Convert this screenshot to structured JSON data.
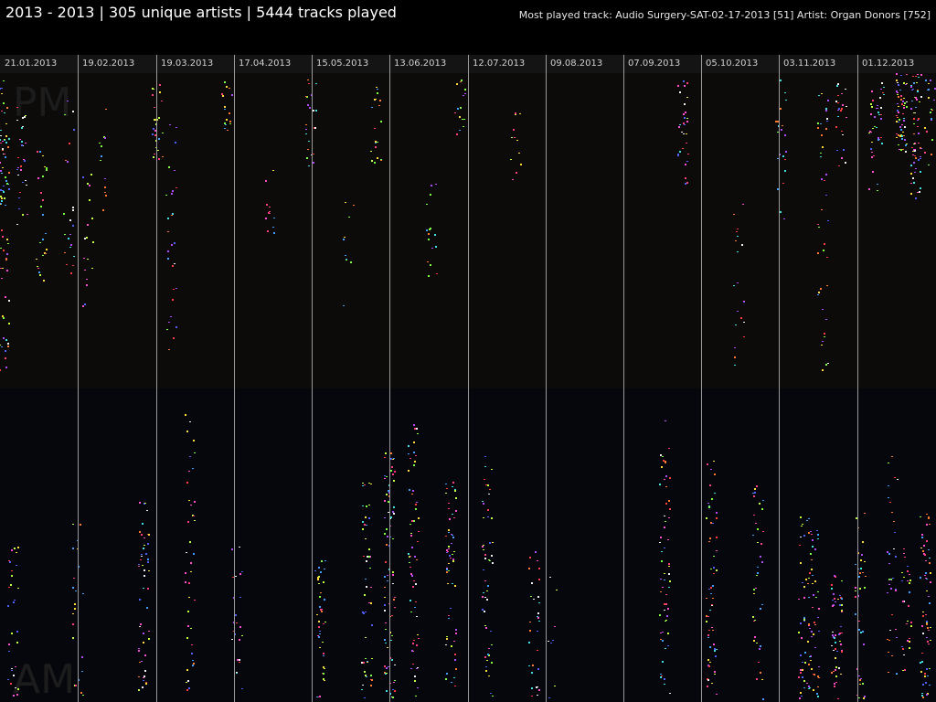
{
  "header": {
    "title": "2013 - 2013 | 305 unique artists | 5444 tracks played",
    "most_played_track": "Most played track: Audio Surgery-SAT-02-17-2013 [51]",
    "top_artist": "Artist: Organ Donors [752]"
  },
  "chart_data": {
    "type": "scatter",
    "title": "2013 - 2013 | 305 unique artists | 5444 tracks played",
    "x_range": [
      "2013-01-01",
      "2013-12-31"
    ],
    "tick_labels": [
      "21.01.2013",
      "19.02.2013",
      "19.03.2013",
      "17.04.2013",
      "15.05.2013",
      "13.06.2013",
      "12.07.2013",
      "09.08.2013",
      "07.09.2013",
      "05.10.2013",
      "03.11.2013",
      "01.12.2013"
    ],
    "half_labels": [
      "PM",
      "AM"
    ],
    "y_layout": "time of day, PM half on top, AM half below",
    "colors": {
      "background": "#000000",
      "pm_band": "#0d0b0a",
      "am_band": "#06070c",
      "gridline": "#9a9a9a",
      "tick_label_bg": "#141414"
    },
    "dot_palette": [
      "#ff3f7f",
      "#ffd83a",
      "#3fa0ff",
      "#7cff3f",
      "#ff7a2f",
      "#b24cff",
      "#3fe0e0",
      "#ff3f3f",
      "#f0f0f0",
      "#5060ff",
      "#ff4fd0",
      "#c0ff3f"
    ],
    "clusters": [
      {
        "date": "2013-01-01",
        "x_frac": 0.0,
        "half": "pm",
        "t0": 0.02,
        "t1": 0.95,
        "n": 80
      },
      {
        "date": "2013-01-03",
        "x_frac": 0.02,
        "half": "pm",
        "t0": 0.1,
        "t1": 0.5,
        "n": 30
      },
      {
        "date": "2013-01-05",
        "x_frac": 0.04,
        "half": "pm",
        "t0": 0.2,
        "t1": 0.7,
        "n": 26
      },
      {
        "date": "2013-01-10",
        "x_frac": 0.07,
        "half": "pm",
        "t0": 0.05,
        "t1": 0.65,
        "n": 22
      },
      {
        "date": "2013-01-16",
        "x_frac": 0.09,
        "half": "pm",
        "t0": 0.3,
        "t1": 0.75,
        "n": 18
      },
      {
        "date": "2013-01-25",
        "x_frac": 0.105,
        "half": "pm",
        "t0": 0.1,
        "t1": 0.45,
        "n": 12
      },
      {
        "date": "2013-01-01",
        "x_frac": 0.01,
        "half": "am",
        "t0": 0.5,
        "t1": 1.0,
        "n": 30
      },
      {
        "date": "2013-01-20",
        "x_frac": 0.08,
        "half": "am",
        "t0": 0.4,
        "t1": 1.0,
        "n": 22
      },
      {
        "date": "2013-02-10",
        "x_frac": 0.15,
        "half": "am",
        "t0": 0.35,
        "t1": 1.0,
        "n": 50
      },
      {
        "date": "2013-02-12",
        "x_frac": 0.165,
        "half": "pm",
        "t0": 0.02,
        "t1": 0.3,
        "n": 25
      },
      {
        "date": "2013-02-17",
        "x_frac": 0.18,
        "half": "pm",
        "t0": 0.15,
        "t1": 0.9,
        "n": 28
      },
      {
        "date": "2013-02-24",
        "x_frac": 0.2,
        "half": "am",
        "t0": 0.05,
        "t1": 1.0,
        "n": 40
      },
      {
        "date": "2013-03-10",
        "x_frac": 0.24,
        "half": "pm",
        "t0": 0.02,
        "t1": 0.2,
        "n": 18
      },
      {
        "date": "2013-03-15",
        "x_frac": 0.25,
        "half": "am",
        "t0": 0.5,
        "t1": 1.0,
        "n": 24
      },
      {
        "date": "2013-03-25",
        "x_frac": 0.285,
        "half": "pm",
        "t0": 0.3,
        "t1": 0.55,
        "n": 12
      },
      {
        "date": "2013-04-05",
        "x_frac": 0.33,
        "half": "pm",
        "t0": 0.02,
        "t1": 0.3,
        "n": 22
      },
      {
        "date": "2013-04-10",
        "x_frac": 0.34,
        "half": "am",
        "t0": 0.55,
        "t1": 1.0,
        "n": 40
      },
      {
        "date": "2013-04-20",
        "x_frac": 0.37,
        "half": "pm",
        "t0": 0.4,
        "t1": 0.75,
        "n": 10
      },
      {
        "date": "2013-04-26",
        "x_frac": 0.39,
        "half": "am",
        "t0": 0.3,
        "t1": 1.0,
        "n": 50
      },
      {
        "date": "2013-05-10",
        "x_frac": 0.4,
        "half": "pm",
        "t0": 0.02,
        "t1": 0.3,
        "n": 20
      },
      {
        "date": "2013-05-16",
        "x_frac": 0.415,
        "half": "am",
        "t0": 0.2,
        "t1": 1.0,
        "n": 80
      },
      {
        "date": "2013-05-20",
        "x_frac": 0.44,
        "half": "am",
        "t0": 0.1,
        "t1": 1.0,
        "n": 60
      },
      {
        "date": "2013-05-28",
        "x_frac": 0.46,
        "half": "pm",
        "t0": 0.3,
        "t1": 0.65,
        "n": 16
      },
      {
        "date": "2013-06-05",
        "x_frac": 0.48,
        "half": "am",
        "t0": 0.3,
        "t1": 1.0,
        "n": 60
      },
      {
        "date": "2013-06-08",
        "x_frac": 0.49,
        "half": "pm",
        "t0": 0.02,
        "t1": 0.2,
        "n": 15
      },
      {
        "date": "2013-06-12",
        "x_frac": 0.52,
        "half": "am",
        "t0": 0.2,
        "t1": 1.0,
        "n": 50
      },
      {
        "date": "2013-06-20",
        "x_frac": 0.55,
        "half": "pm",
        "t0": 0.1,
        "t1": 0.35,
        "n": 12
      },
      {
        "date": "2013-06-25",
        "x_frac": 0.57,
        "half": "am",
        "t0": 0.5,
        "t1": 1.0,
        "n": 30
      },
      {
        "date": "2013-07-10",
        "x_frac": 0.59,
        "half": "am",
        "t0": 0.6,
        "t1": 1.0,
        "n": 8
      },
      {
        "date": "2013-08-08",
        "x_frac": 0.71,
        "half": "am",
        "t0": 0.1,
        "t1": 1.0,
        "n": 60
      },
      {
        "date": "2013-08-12",
        "x_frac": 0.73,
        "half": "pm",
        "t0": 0.02,
        "t1": 0.35,
        "n": 30
      },
      {
        "date": "2013-08-20",
        "x_frac": 0.76,
        "half": "am",
        "t0": 0.2,
        "t1": 1.0,
        "n": 60
      },
      {
        "date": "2013-09-05",
        "x_frac": 0.79,
        "half": "pm",
        "t0": 0.4,
        "t1": 0.95,
        "n": 20
      },
      {
        "date": "2013-09-10",
        "x_frac": 0.81,
        "half": "am",
        "t0": 0.3,
        "t1": 1.0,
        "n": 40
      },
      {
        "date": "2013-09-18",
        "x_frac": 0.835,
        "half": "pm",
        "t0": 0.02,
        "t1": 0.5,
        "n": 22
      },
      {
        "date": "2013-09-25",
        "x_frac": 0.86,
        "half": "am",
        "t0": 0.4,
        "t1": 1.0,
        "n": 40
      },
      {
        "date": "2013-10-05",
        "x_frac": 0.88,
        "half": "pm",
        "t0": 0.05,
        "t1": 0.95,
        "n": 40
      },
      {
        "date": "2013-10-12",
        "x_frac": 0.9,
        "half": "pm",
        "t0": 0.02,
        "t1": 0.3,
        "n": 25
      },
      {
        "date": "2013-10-20",
        "x_frac": 0.92,
        "half": "am",
        "t0": 0.4,
        "t1": 1.0,
        "n": 40
      },
      {
        "date": "2013-10-28",
        "x_frac": 0.94,
        "half": "pm",
        "t0": 0.02,
        "t1": 0.25,
        "n": 20
      },
      {
        "date": "2013-11-03",
        "x_frac": 0.965,
        "half": "pm",
        "t0": 0.0,
        "t1": 0.25,
        "n": 60
      },
      {
        "date": "2013-11-05",
        "x_frac": 0.98,
        "half": "pm",
        "t0": 0.0,
        "t1": 0.4,
        "n": 60
      },
      {
        "date": "2013-11-10",
        "x_frac": 0.99,
        "half": "am",
        "t0": 0.4,
        "t1": 1.0,
        "n": 60
      },
      {
        "date": "2013-11-20",
        "x_frac": 0.87,
        "half": "am",
        "t0": 0.45,
        "t1": 1.0,
        "n": 50
      },
      {
        "date": "2013-11-25",
        "x_frac": 0.895,
        "half": "am",
        "t0": 0.6,
        "t1": 1.0,
        "n": 50
      },
      {
        "date": "2013-12-05",
        "x_frac": 0.935,
        "half": "pm",
        "t0": 0.05,
        "t1": 0.4,
        "n": 20
      },
      {
        "date": "2013-12-12",
        "x_frac": 0.955,
        "half": "am",
        "t0": 0.2,
        "t1": 1.0,
        "n": 35
      },
      {
        "date": "2013-12-18",
        "x_frac": 0.97,
        "half": "am",
        "t0": 0.5,
        "t1": 1.0,
        "n": 30
      },
      {
        "date": "2013-12-28",
        "x_frac": 0.995,
        "half": "pm",
        "t0": 0.02,
        "t1": 0.3,
        "n": 20
      }
    ]
  }
}
